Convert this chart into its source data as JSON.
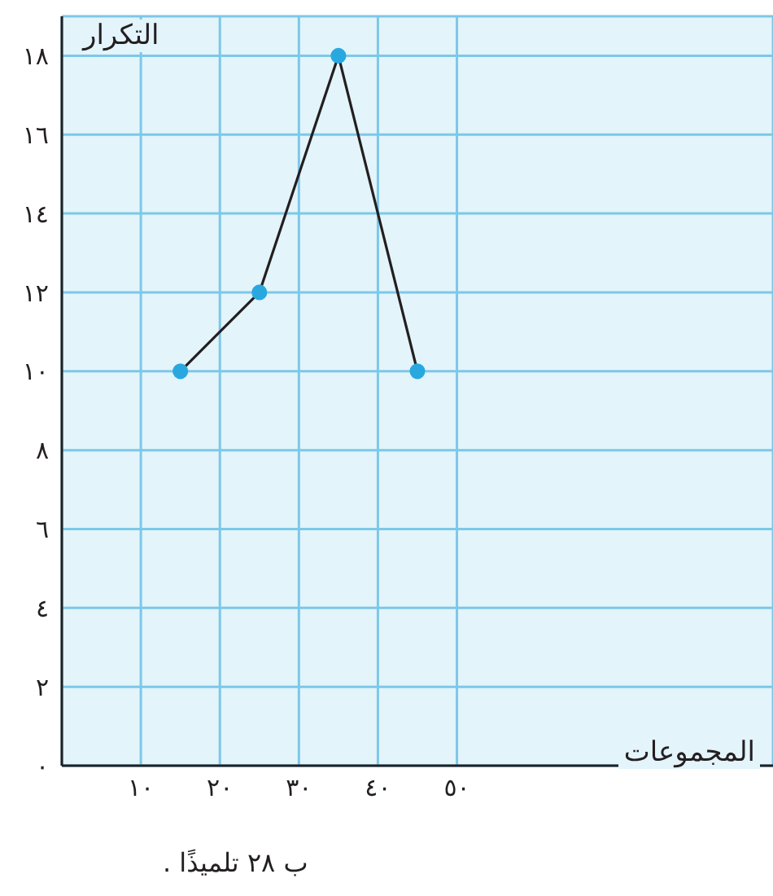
{
  "chart_data": {
    "type": "line",
    "xlabel": "المجموعات",
    "ylabel": "التكرار",
    "x": [
      15,
      25,
      35,
      45
    ],
    "series": [
      {
        "color": "#231f20",
        "values": [
          10,
          12,
          18,
          10
        ]
      }
    ],
    "marker": "circle",
    "line_style": "solid",
    "grid": true,
    "xlim": [
      0,
      90
    ],
    "xticks": [
      {
        "value": 10,
        "label": "١٠"
      },
      {
        "value": 20,
        "label": "٢٠"
      },
      {
        "value": 30,
        "label": "٣٠"
      },
      {
        "value": 40,
        "label": "٤٠"
      },
      {
        "value": 50,
        "label": "٥٠"
      }
    ],
    "ylim": [
      0,
      19
    ],
    "yticks": [
      {
        "value": 0,
        "label": "٠"
      },
      {
        "value": 2,
        "label": "٢"
      },
      {
        "value": 4,
        "label": "٤"
      },
      {
        "value": 6,
        "label": "٦"
      },
      {
        "value": 8,
        "label": "٨"
      },
      {
        "value": 10,
        "label": "١٠"
      },
      {
        "value": 12,
        "label": "١٢"
      },
      {
        "value": 14,
        "label": "١٤"
      },
      {
        "value": 16,
        "label": "١٦"
      },
      {
        "value": 18,
        "label": "١٨"
      }
    ],
    "annotations": [
      "ب ٢٨ تلميذًا ."
    ]
  }
}
